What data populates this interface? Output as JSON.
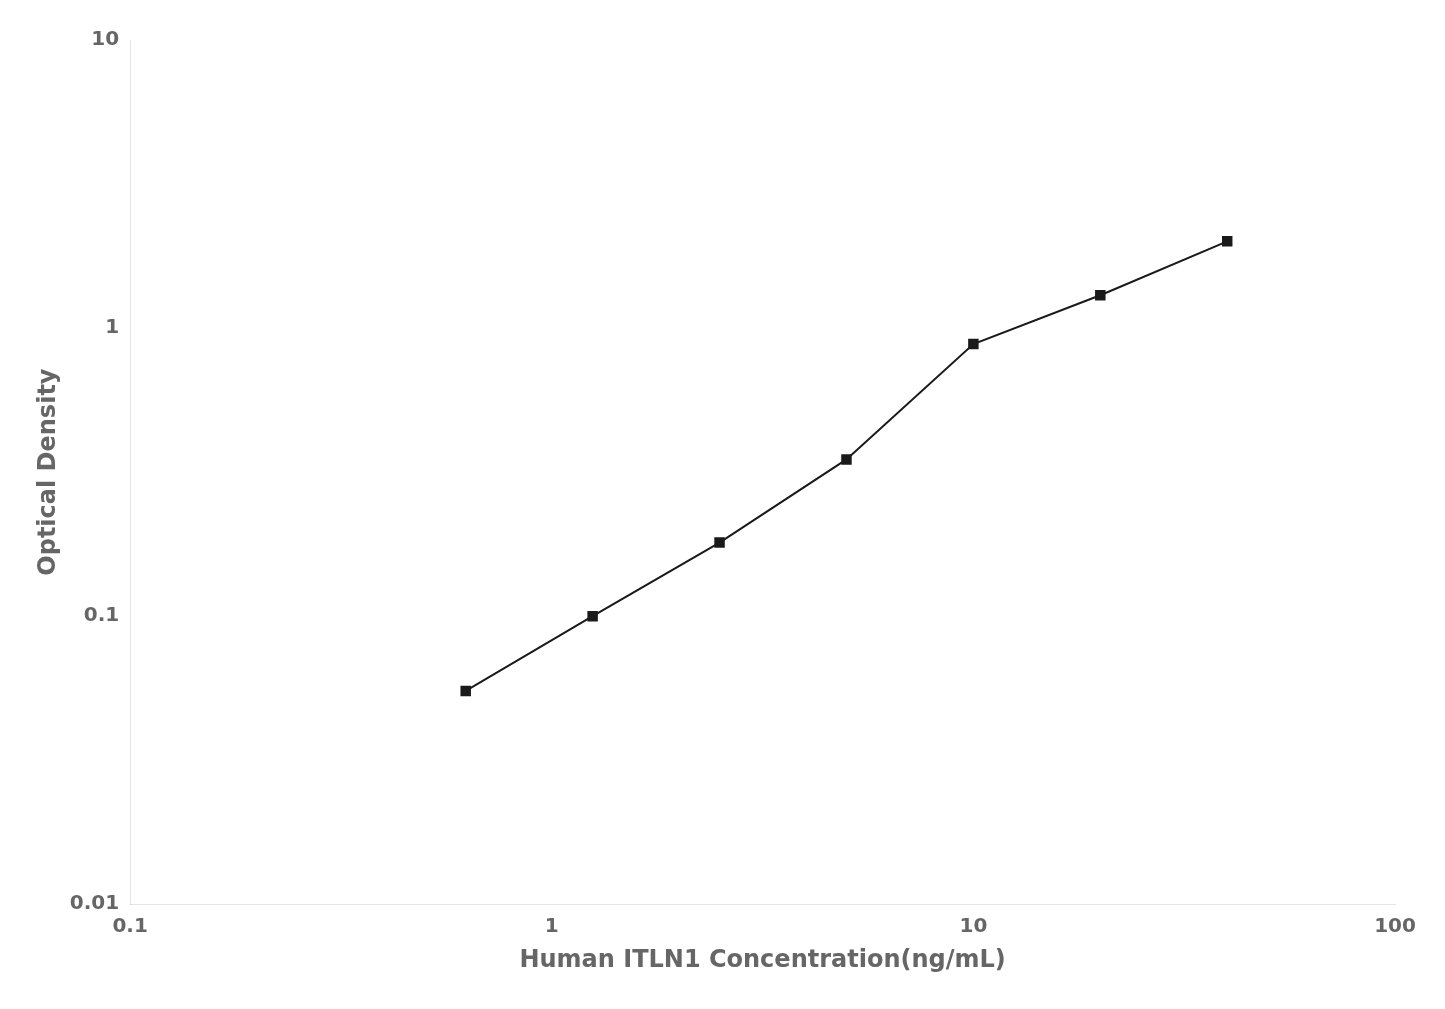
{
  "chart_data": {
    "type": "line",
    "x": [
      0.625,
      1.25,
      2.5,
      5.0,
      10.0,
      20.0,
      40.0
    ],
    "values": [
      0.055,
      0.1,
      0.18,
      0.35,
      0.88,
      1.3,
      2.0
    ],
    "xlabel": "Human ITLN1 Concentration(ng/mL)",
    "ylabel": "Optical Density",
    "xlim": [
      0.1,
      100
    ],
    "ylim": [
      0.01,
      10
    ],
    "xticks": [
      0.1,
      1,
      10,
      100
    ],
    "yticks": [
      0.01,
      0.1,
      1,
      10
    ],
    "log": true,
    "grid": false,
    "color": "#1a1a1a",
    "marker": "square"
  }
}
